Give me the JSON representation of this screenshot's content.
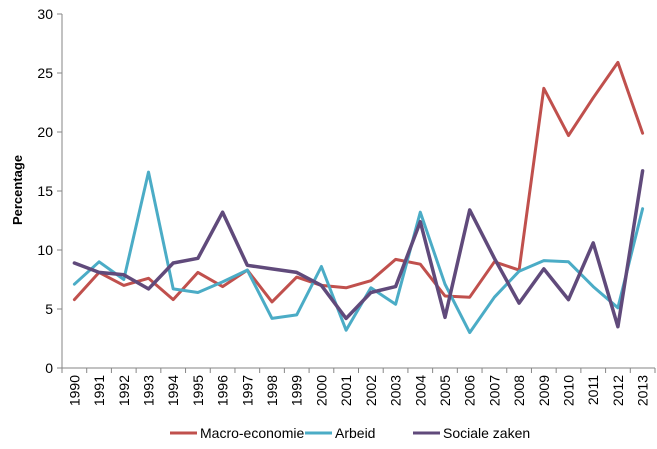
{
  "chart_data": {
    "type": "line",
    "ylabel": "Percentage",
    "ylim": [
      0,
      30
    ],
    "yticks": [
      "0",
      "5",
      "10",
      "15",
      "20",
      "25",
      "30"
    ],
    "categories": [
      "1990",
      "1991",
      "1992",
      "1993",
      "1994",
      "1995",
      "1996",
      "1997",
      "1998",
      "1999",
      "2000",
      "2001",
      "2002",
      "2003",
      "2004",
      "2005",
      "2006",
      "2007",
      "2008",
      "2009",
      "2010",
      "2011",
      "2012",
      "2013"
    ],
    "legend_position": "bottom",
    "grid": false,
    "series": [
      {
        "name": "Macro-economie",
        "color": "#c0504d",
        "values": [
          5.8,
          8.1,
          7.0,
          7.6,
          5.8,
          8.1,
          6.9,
          8.3,
          5.6,
          7.7,
          7.0,
          6.8,
          7.4,
          9.2,
          8.8,
          6.1,
          6.0,
          9.0,
          8.3,
          23.7,
          19.7,
          22.9,
          25.9,
          19.9
        ]
      },
      {
        "name": "Arbeid",
        "color": "#4bacc6",
        "values": [
          7.1,
          9.0,
          7.5,
          16.6,
          6.7,
          6.4,
          7.3,
          8.3,
          4.2,
          4.5,
          8.6,
          3.2,
          6.8,
          5.4,
          13.2,
          7.1,
          3.0,
          6.0,
          8.2,
          9.1,
          9.0,
          6.9,
          5.1,
          13.5
        ]
      },
      {
        "name": "Sociale zaken",
        "color": "#604a7b",
        "values": [
          8.9,
          8.1,
          7.9,
          6.7,
          8.9,
          9.3,
          13.2,
          8.7,
          8.4,
          8.1,
          7.0,
          4.2,
          6.4,
          6.9,
          12.4,
          4.3,
          13.4,
          9.3,
          5.5,
          8.4,
          5.8,
          10.6,
          3.5,
          16.7
        ]
      }
    ]
  }
}
